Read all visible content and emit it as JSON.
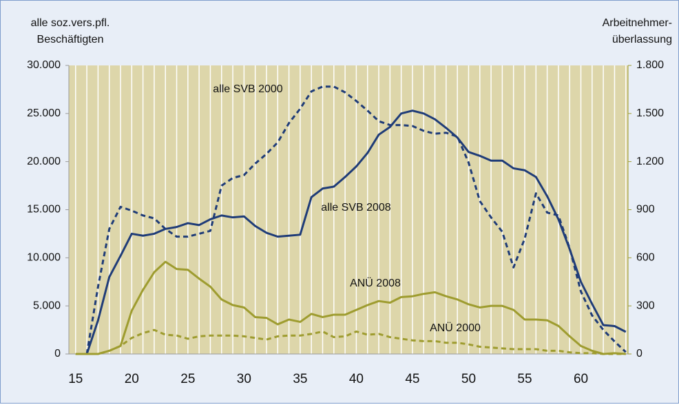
{
  "chart_data": {
    "type": "line",
    "y_label": [
      "alle soz.vers.pfl.",
      "Beschäftigten"
    ],
    "y2_label": [
      "Arbeitnehmer-",
      "überlassung"
    ],
    "x": [
      15,
      16,
      17,
      18,
      19,
      20,
      21,
      22,
      23,
      24,
      25,
      26,
      27,
      28,
      29,
      30,
      31,
      32,
      33,
      34,
      35,
      36,
      37,
      38,
      39,
      40,
      41,
      42,
      43,
      44,
      45,
      46,
      47,
      48,
      49,
      50,
      51,
      52,
      53,
      54,
      55,
      56,
      57,
      58,
      59,
      60,
      61,
      62,
      63,
      64
    ],
    "xlim": [
      14.4,
      64.2
    ],
    "xticks": [
      15,
      20,
      25,
      30,
      35,
      40,
      45,
      50,
      55,
      60
    ],
    "ylim": [
      0,
      30000
    ],
    "yticks": [
      0,
      {
        "value": 5000,
        "label": "5.000"
      },
      {
        "value": 10000,
        "label": "10.000"
      },
      {
        "value": 15000,
        "label": "15.000"
      },
      {
        "value": 20000,
        "label": "20.000"
      },
      {
        "value": 25000,
        "label": "25.000"
      },
      {
        "value": 30000,
        "label": "30.000"
      }
    ],
    "y2lim": [
      0,
      1800
    ],
    "y2ticks": [
      0,
      300,
      600,
      900,
      {
        "value": 1200,
        "label": "1.200"
      },
      {
        "value": 1500,
        "label": "1.500"
      },
      {
        "value": 1800,
        "label": "1.800"
      }
    ],
    "grid": true,
    "series": [
      {
        "name": "alle SVB 2008",
        "color": "#1f3c78",
        "dash": false,
        "values": [
          null,
          0,
          3500,
          8000,
          10200,
          12500,
          12300,
          12500,
          13000,
          13200,
          13600,
          13400,
          14000,
          14400,
          14200,
          14300,
          13300,
          12600,
          12200,
          12300,
          12400,
          16300,
          17200,
          17400,
          18400,
          19500,
          20900,
          22800,
          23600,
          25000,
          25300,
          25000,
          24400,
          23500,
          22500,
          21000,
          20600,
          20100,
          20100,
          19300,
          19100,
          18400,
          16400,
          14000,
          10900,
          7500,
          5200,
          3000,
          2900,
          2300
        ]
      },
      {
        "name": "alle SVB 2000",
        "color": "#1f3c78",
        "dash": true,
        "values": [
          null,
          0,
          7000,
          13000,
          15300,
          14900,
          14400,
          14100,
          13000,
          12200,
          12200,
          12500,
          12800,
          17500,
          18300,
          18600,
          19800,
          20800,
          22000,
          24000,
          25500,
          27300,
          27800,
          27800,
          27200,
          26300,
          25300,
          24200,
          23800,
          23800,
          23700,
          23200,
          22900,
          23000,
          22600,
          19900,
          15900,
          14200,
          12700,
          9000,
          12000,
          16700,
          14700,
          14400,
          11000,
          6500,
          4000,
          2500,
          1300,
          200
        ]
      },
      {
        "name": "ANÜ 2008",
        "color": "#9e9c2f",
        "dash": false,
        "axis": "y2",
        "values": [
          0,
          0,
          0,
          20,
          50,
          270,
          400,
          510,
          575,
          530,
          525,
          470,
          420,
          340,
          305,
          290,
          230,
          225,
          185,
          215,
          200,
          250,
          230,
          245,
          245,
          275,
          305,
          330,
          320,
          355,
          360,
          375,
          385,
          360,
          340,
          310,
          290,
          300,
          300,
          275,
          215,
          215,
          210,
          175,
          110,
          50,
          20,
          0,
          5,
          0
        ]
      },
      {
        "name": "ANÜ 2000",
        "color": "#9e9c2f",
        "dash": true,
        "axis": "y2",
        "values": [
          0,
          0,
          0,
          20,
          50,
          100,
          130,
          150,
          120,
          115,
          95,
          110,
          115,
          115,
          115,
          110,
          100,
          90,
          110,
          115,
          115,
          125,
          140,
          105,
          110,
          140,
          120,
          125,
          105,
          95,
          85,
          80,
          80,
          70,
          70,
          60,
          45,
          40,
          35,
          30,
          30,
          30,
          20,
          20,
          10,
          5,
          5,
          0,
          0,
          0
        ]
      }
    ]
  }
}
